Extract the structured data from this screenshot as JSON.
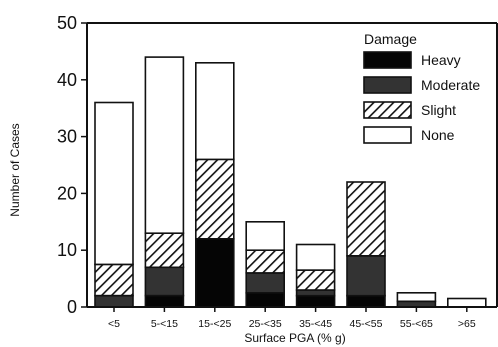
{
  "chart_data": {
    "type": "bar",
    "stacked": true,
    "categories": [
      "<5",
      "5-<15",
      "15-<25",
      "25-<35",
      "35-<45",
      "45-<55",
      "55-<65",
      ">65"
    ],
    "series": [
      {
        "name": "Heavy",
        "values": [
          0,
          2,
          12,
          2.5,
          2,
          2,
          0,
          0
        ],
        "fill": "#050505"
      },
      {
        "name": "Moderate",
        "values": [
          2,
          5,
          0,
          3.5,
          1,
          7,
          1,
          0
        ],
        "fill": "#333333"
      },
      {
        "name": "Slight",
        "values": [
          5.5,
          6,
          14,
          4,
          3.5,
          13,
          0,
          0
        ],
        "fill": "hatch"
      },
      {
        "name": "None",
        "values": [
          28.5,
          31,
          17,
          5,
          4.5,
          0,
          1.5,
          1.5
        ],
        "fill": "#ffffff"
      }
    ],
    "title": "",
    "xlabel": "Surface PGA (% g)",
    "ylabel": "Number of Cases",
    "ylim": [
      0,
      50
    ],
    "yticks": [
      0,
      10,
      20,
      30,
      40,
      50
    ],
    "legend": {
      "title": "Damage",
      "position": "top-right"
    },
    "grid": false
  }
}
